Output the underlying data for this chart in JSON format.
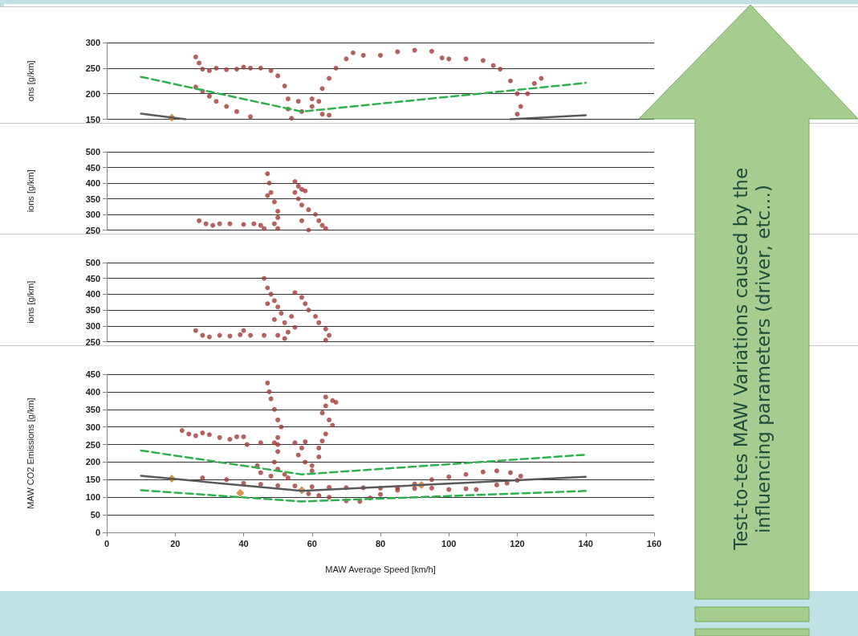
{
  "chart_data": [
    {
      "type": "scatter",
      "ylabel": "ons [g/km]",
      "xlim": [
        0,
        160
      ],
      "ylim": [
        150,
        300
      ],
      "yticks": [
        150,
        200,
        250,
        300
      ],
      "grid": "y",
      "tick_labels": "y",
      "series": [
        {
          "type": "scatter",
          "color": "#a33a35",
          "marker": "circle",
          "x": [
            26,
            27,
            28,
            30,
            32,
            35,
            38,
            40,
            42,
            45,
            48,
            50,
            52,
            53,
            53,
            54,
            26,
            28,
            30,
            32,
            35,
            38,
            42,
            57,
            60,
            63,
            65,
            67,
            70,
            72,
            75,
            80,
            85,
            90,
            95,
            98,
            100,
            105,
            110,
            113,
            115,
            118,
            120,
            121,
            120,
            123,
            125,
            127,
            56,
            60,
            63,
            65,
            62
          ],
          "values": [
            272,
            260,
            248,
            245,
            250,
            247,
            248,
            252,
            250,
            250,
            245,
            235,
            215,
            190,
            170,
            152,
            213,
            205,
            195,
            185,
            175,
            165,
            155,
            165,
            190,
            210,
            230,
            250,
            268,
            280,
            275,
            275,
            282,
            285,
            283,
            270,
            268,
            268,
            265,
            255,
            248,
            225,
            200,
            175,
            160,
            200,
            220,
            230,
            185,
            175,
            160,
            158,
            185
          ]
        },
        {
          "type": "line",
          "color": "#2eb14b",
          "line_style": "dashed",
          "x": [
            10,
            57,
            140
          ],
          "values": [
            233,
            165,
            221
          ]
        },
        {
          "type": "line",
          "color": "#595959",
          "line_style": "solid",
          "x": [
            10,
            23,
            70,
            118,
            140
          ],
          "values": [
            161,
            150,
            null,
            150,
            158
          ]
        },
        {
          "type": "scatter",
          "color": "#d97b1a",
          "marker": "diamond",
          "x": [
            19
          ],
          "values": [
            153
          ]
        }
      ]
    },
    {
      "type": "scatter",
      "ylabel": "ions [g/km]",
      "xlim": [
        0,
        160
      ],
      "ylim": [
        250,
        500
      ],
      "yticks": [
        250,
        300,
        350,
        400,
        450,
        500
      ],
      "grid": "y",
      "tick_labels": "y",
      "series": [
        {
          "type": "scatter",
          "color": "#a33a35",
          "marker": "circle",
          "x": [
            27,
            29,
            31,
            33,
            36,
            40,
            43,
            45,
            46,
            47,
            47.5,
            48,
            49,
            50,
            50,
            49,
            50,
            47,
            55,
            56,
            55,
            56,
            57,
            59,
            61,
            62,
            63,
            64,
            57,
            58,
            57,
            59
          ],
          "values": [
            280,
            270,
            265,
            270,
            270,
            268,
            270,
            265,
            255,
            430,
            400,
            370,
            340,
            310,
            290,
            270,
            255,
            360,
            405,
            390,
            370,
            350,
            330,
            315,
            300,
            280,
            265,
            255,
            380,
            375,
            280,
            250
          ]
        }
      ]
    },
    {
      "type": "scatter",
      "ylabel": "ions [g/km]",
      "xlim": [
        0,
        160
      ],
      "ylim": [
        250,
        500
      ],
      "yticks": [
        250,
        300,
        350,
        400,
        450,
        500
      ],
      "grid": "y",
      "tick_labels": "y",
      "series": [
        {
          "type": "scatter",
          "color": "#a33a35",
          "marker": "circle",
          "x": [
            26,
            28,
            30,
            33,
            36,
            39,
            40,
            42,
            46,
            50,
            46,
            47,
            48,
            49,
            50,
            51,
            52,
            53,
            52,
            47,
            49,
            55,
            57,
            58,
            59,
            61,
            62,
            64,
            65,
            64,
            54,
            55
          ],
          "values": [
            285,
            270,
            265,
            270,
            268,
            272,
            285,
            270,
            270,
            270,
            450,
            420,
            400,
            380,
            360,
            340,
            310,
            280,
            260,
            370,
            320,
            405,
            390,
            370,
            350,
            330,
            310,
            290,
            270,
            255,
            330,
            295
          ]
        }
      ]
    },
    {
      "type": "scatter",
      "xlabel": "MAW Average Speed [km/h]",
      "ylabel": "MAW CO2 Emissions [g/km]",
      "xlim": [
        0,
        160
      ],
      "xticks": [
        0,
        20,
        40,
        60,
        80,
        100,
        120,
        140,
        160
      ],
      "ylim": [
        0,
        450
      ],
      "yticks": [
        0,
        50,
        100,
        150,
        200,
        250,
        300,
        350,
        400,
        450
      ],
      "grid": "y",
      "annotations": [
        "Test-to-tes MAW Variations caused by the influencing parameters (driver, etc…)"
      ],
      "series": [
        {
          "type": "scatter",
          "color": "#a33a35",
          "marker": "circle",
          "x": [
            22,
            24,
            26,
            28,
            30,
            33,
            36,
            38,
            40,
            47,
            47.5,
            48,
            49,
            50,
            51,
            50,
            49,
            50,
            49,
            50,
            52,
            48,
            45,
            44,
            41,
            45,
            50,
            55,
            58,
            57,
            56,
            58,
            60,
            62,
            62,
            63,
            64,
            66,
            65,
            63,
            64,
            64,
            66,
            67,
            28,
            35,
            40,
            45,
            50,
            55,
            60,
            65,
            70,
            75,
            80,
            85,
            90,
            95,
            100,
            105,
            108,
            59,
            62,
            65,
            70,
            74,
            77,
            80,
            85,
            90,
            95,
            100,
            105,
            110,
            114,
            118,
            121,
            120,
            117,
            114,
            53,
            60
          ],
          "values": [
            290,
            280,
            275,
            283,
            278,
            270,
            265,
            272,
            272,
            425,
            400,
            380,
            350,
            320,
            300,
            270,
            255,
            230,
            200,
            180,
            165,
            160,
            170,
            190,
            250,
            255,
            250,
            255,
            258,
            240,
            220,
            200,
            190,
            215,
            240,
            260,
            280,
            305,
            320,
            340,
            360,
            385,
            375,
            370,
            155,
            150,
            140,
            137,
            133,
            132,
            130,
            128,
            127,
            127,
            126,
            127,
            125,
            126,
            122,
            124,
            122,
            110,
            105,
            100,
            90,
            88,
            98,
            108,
            120,
            138,
            150,
            158,
            165,
            172,
            175,
            170,
            160,
            148,
            140,
            135,
            155,
            175
          ]
        },
        {
          "type": "line",
          "color": "#2eb14b",
          "line_style": "dashed",
          "x": [
            10,
            57,
            140
          ],
          "values": [
            233,
            165,
            221
          ]
        },
        {
          "type": "line",
          "color": "#2eb14b",
          "line_style": "dashed",
          "x": [
            10,
            57,
            140
          ],
          "values": [
            120,
            88,
            118
          ]
        },
        {
          "type": "line",
          "color": "#595959",
          "line_style": "solid",
          "x": [
            10,
            57,
            140
          ],
          "values": [
            161,
            118,
            158
          ]
        },
        {
          "type": "scatter",
          "color": "#d97b1a",
          "marker": "diamond",
          "x": [
            19,
            39,
            57,
            92
          ],
          "values": [
            153,
            112,
            120,
            135
          ]
        }
      ]
    }
  ]
}
